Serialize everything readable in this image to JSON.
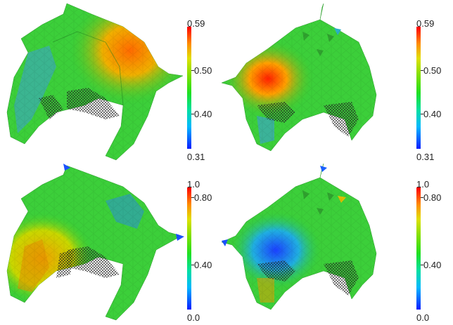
{
  "panels": [
    {
      "name": "top-left",
      "colorbar": {
        "max_label": "0.59",
        "min_label": "0.31",
        "ticks": [
          {
            "label": "0.50",
            "value": 0.5
          },
          {
            "label": "0.40",
            "value": 0.4
          }
        ],
        "min": 0.31,
        "max": 0.59
      }
    },
    {
      "name": "top-right",
      "colorbar": {
        "max_label": "0.59",
        "min_label": "0.31",
        "ticks": [
          {
            "label": "0.50",
            "value": 0.5
          },
          {
            "label": "0.40",
            "value": 0.4
          }
        ],
        "min": 0.31,
        "max": 0.59
      }
    },
    {
      "name": "bottom-left",
      "colorbar": {
        "max_label": "1.0",
        "min_label": "0.0",
        "ticks": [
          {
            "label": "0.80",
            "value": 0.8
          },
          {
            "label": "0.40",
            "value": 0.4
          }
        ],
        "min": 0.0,
        "max": 1.0
      }
    },
    {
      "name": "bottom-right",
      "colorbar": {
        "max_label": "1.0",
        "min_label": "0.0",
        "ticks": [
          {
            "label": "0.80",
            "value": 0.8
          },
          {
            "label": "0.40",
            "value": 0.4
          }
        ],
        "min": 0.0,
        "max": 1.0
      }
    }
  ],
  "colormap": [
    "#0a1cff",
    "#00c8ff",
    "#00e08a",
    "#40e000",
    "#b8e000",
    "#ffd000",
    "#ff5000",
    "#ff0000"
  ]
}
